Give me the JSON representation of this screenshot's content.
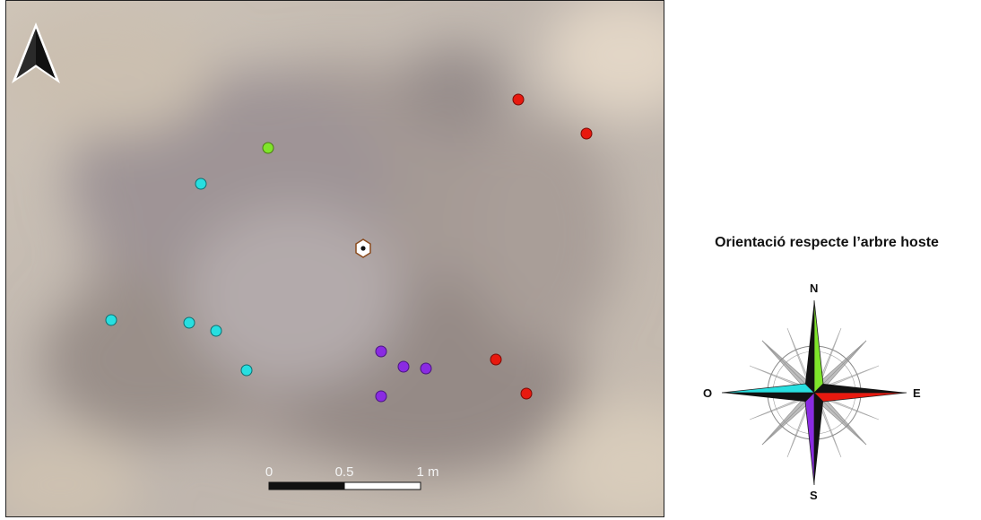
{
  "map": {
    "scale_bar": {
      "labels": [
        "0",
        "0.5",
        "1 m"
      ]
    },
    "host_tree": {
      "icon": "hexagon-tree-icon"
    },
    "north_arrow": {
      "icon": "north-arrow-icon"
    },
    "groups": [
      {
        "orientation": "N",
        "color": "#7fe52a",
        "count": 1
      },
      {
        "orientation": "E",
        "color": "#e8190f",
        "count": 4
      },
      {
        "orientation": "S",
        "color": "#8a2be2",
        "count": 4
      },
      {
        "orientation": "O",
        "color": "#27dfe0",
        "count": 5
      }
    ]
  },
  "legend": {
    "title": "Orientació respecte l’arbre hoste",
    "compass": {
      "north": "N",
      "east": "E",
      "south": "S",
      "west": "O",
      "colors": {
        "north": "#7fe52a",
        "east": "#e8190f",
        "south": "#8a2be2",
        "west": "#27dfe0"
      }
    }
  }
}
